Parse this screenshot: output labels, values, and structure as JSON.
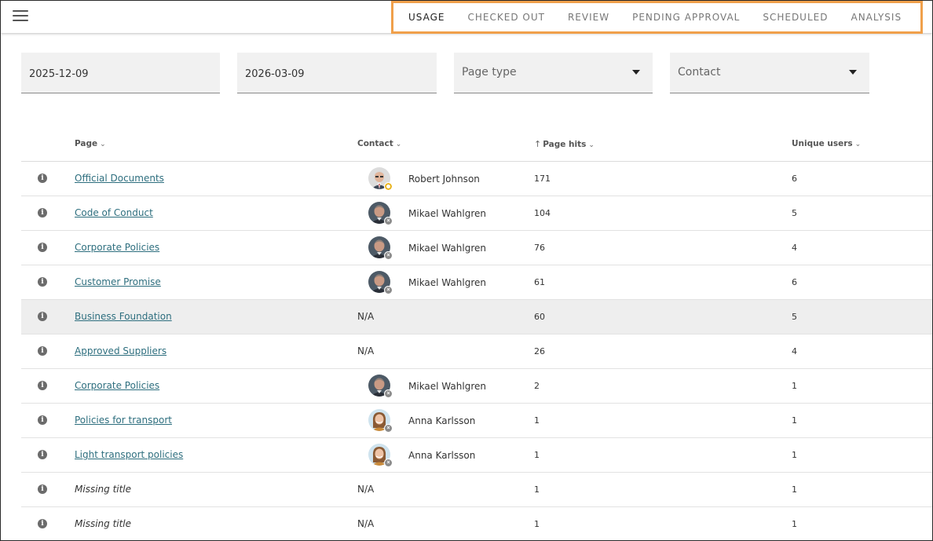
{
  "nav": {
    "tabs": [
      {
        "label": "USAGE",
        "active": true
      },
      {
        "label": "CHECKED OUT",
        "active": false
      },
      {
        "label": "REVIEW",
        "active": false
      },
      {
        "label": "PENDING APPROVAL",
        "active": false
      },
      {
        "label": "SCHEDULED",
        "active": false
      },
      {
        "label": "ANALYSIS",
        "active": false
      }
    ],
    "highlight_color": "#f0a04b"
  },
  "filters": {
    "start_date": "2025-12-09",
    "end_date": "2026-03-09",
    "page_type_placeholder": "Page type",
    "contact_placeholder": "Contact"
  },
  "table": {
    "headers": {
      "page": "Page",
      "contact": "Contact",
      "page_hits": "Page hits",
      "unique_users": "Unique users"
    },
    "rows": [
      {
        "page": "Official Documents",
        "missing": false,
        "contact": "Robert Johnson",
        "avatar": "robert",
        "status": "away",
        "hits": "171",
        "users": "6"
      },
      {
        "page": "Code of Conduct",
        "missing": false,
        "contact": "Mikael Wahlgren",
        "avatar": "mikael",
        "status": "offline",
        "hits": "104",
        "users": "5"
      },
      {
        "page": "Corporate Policies",
        "missing": false,
        "contact": "Mikael Wahlgren",
        "avatar": "mikael",
        "status": "offline",
        "hits": "76",
        "users": "4"
      },
      {
        "page": "Customer Promise",
        "missing": false,
        "contact": "Mikael Wahlgren",
        "avatar": "mikael",
        "status": "offline",
        "hits": "61",
        "users": "6"
      },
      {
        "page": "Business Foundation",
        "missing": false,
        "contact": "N/A",
        "avatar": "",
        "status": "",
        "hits": "60",
        "users": "5"
      },
      {
        "page": "Approved Suppliers",
        "missing": false,
        "contact": "N/A",
        "avatar": "",
        "status": "",
        "hits": "26",
        "users": "4"
      },
      {
        "page": "Corporate Policies",
        "missing": false,
        "contact": "Mikael Wahlgren",
        "avatar": "mikael",
        "status": "offline",
        "hits": "2",
        "users": "1"
      },
      {
        "page": "Policies for transport",
        "missing": false,
        "contact": "Anna Karlsson",
        "avatar": "anna",
        "status": "offline",
        "hits": "1",
        "users": "1"
      },
      {
        "page": "Light transport policies",
        "missing": false,
        "contact": "Anna Karlsson",
        "avatar": "anna",
        "status": "offline",
        "hits": "1",
        "users": "1"
      },
      {
        "page": "Missing title",
        "missing": true,
        "contact": "N/A",
        "avatar": "",
        "status": "",
        "hits": "1",
        "users": "1"
      },
      {
        "page": "Missing title",
        "missing": true,
        "contact": "N/A",
        "avatar": "",
        "status": "",
        "hits": "1",
        "users": "1"
      }
    ]
  }
}
